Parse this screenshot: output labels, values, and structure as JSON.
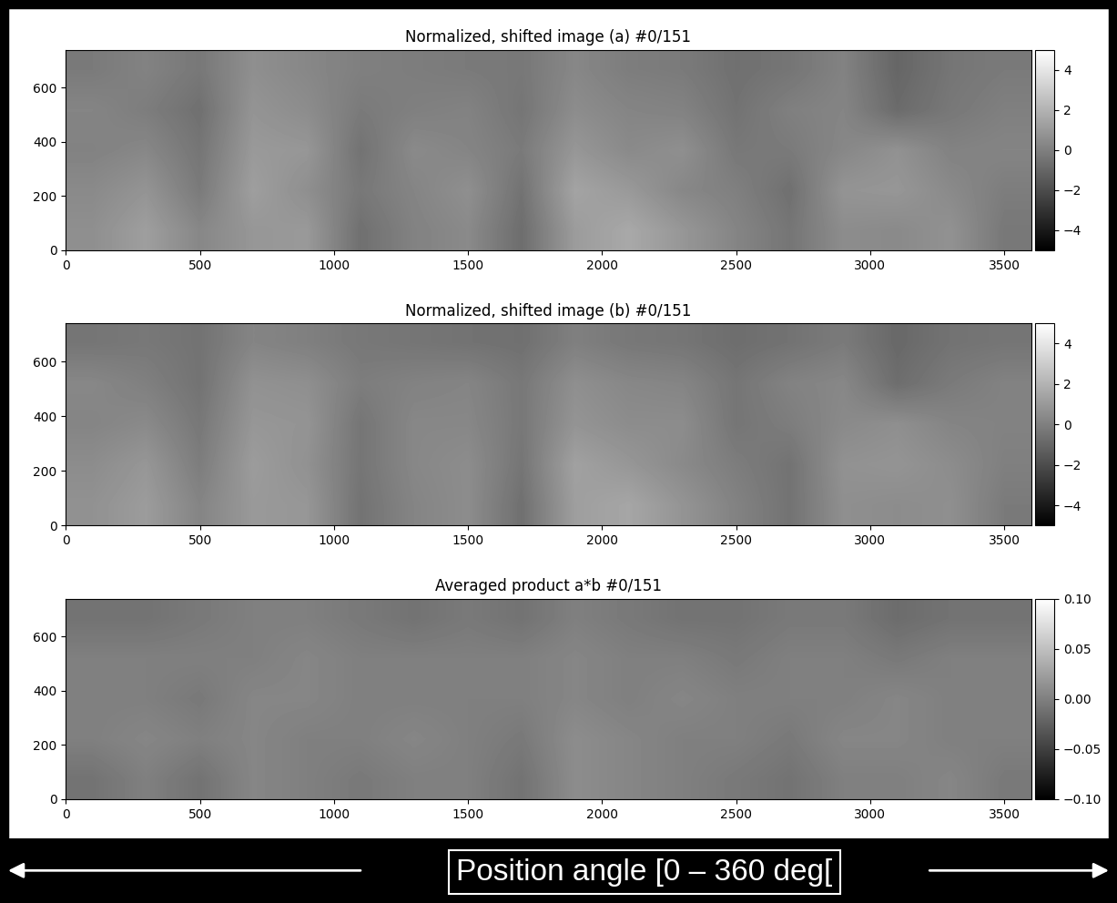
{
  "chart_data": [
    {
      "type": "heatmap",
      "title": "Normalized, shifted image (a) #0/151",
      "xlim": [
        0,
        3600
      ],
      "ylim": [
        0,
        740
      ],
      "xticks": [
        0,
        500,
        1000,
        1500,
        2000,
        2500,
        3000,
        3500
      ],
      "yticks": [
        0,
        200,
        400,
        600
      ],
      "cells": [
        [
          0.6,
          1.2,
          0.3,
          0.9,
          1.0,
          -0.6,
          0.1,
          0.4,
          -0.7,
          1.1,
          1.6,
          0.9,
          0.2,
          -0.4,
          0.5,
          0.4,
          0.7,
          -0.3
        ],
        [
          0.4,
          0.8,
          -0.2,
          1.2,
          0.6,
          -0.3,
          0.2,
          0.6,
          -0.5,
          1.4,
          1.0,
          0.3,
          0.0,
          -0.6,
          0.8,
          0.9,
          0.4,
          -0.1
        ],
        [
          0.1,
          0.3,
          -0.4,
          1.0,
          0.9,
          -0.5,
          0.4,
          0.2,
          -0.2,
          0.9,
          0.4,
          0.6,
          -0.3,
          -0.2,
          0.3,
          0.7,
          0.1,
          0.2
        ],
        [
          0.2,
          -0.1,
          -0.6,
          0.8,
          0.5,
          -0.2,
          0.0,
          0.1,
          -0.4,
          0.5,
          0.2,
          0.1,
          -0.5,
          0.0,
          0.2,
          -0.8,
          -0.3,
          0.0
        ],
        [
          -0.2,
          0.1,
          -0.3,
          0.6,
          0.3,
          0.0,
          -0.1,
          -0.2,
          -0.3,
          0.3,
          -0.1,
          -0.2,
          -0.6,
          -0.4,
          0.1,
          -1.0,
          -0.4,
          -0.2
        ]
      ],
      "colorbar": {
        "range": [
          -5,
          5
        ],
        "ticks": [
          {
            "value": -4,
            "label": "−4"
          },
          {
            "value": -2,
            "label": "−2"
          },
          0,
          2,
          4
        ]
      }
    },
    {
      "type": "heatmap",
      "title": "Normalized, shifted image (b) #0/151",
      "xlim": [
        0,
        3600
      ],
      "ylim": [
        0,
        740
      ],
      "xticks": [
        0,
        500,
        1000,
        1500,
        2000,
        2500,
        3000,
        3500
      ],
      "yticks": [
        0,
        200,
        400,
        600
      ],
      "cells": [
        [
          0.7,
          1.1,
          0.2,
          1.0,
          0.9,
          -0.5,
          0.2,
          0.5,
          -0.6,
          1.2,
          1.5,
          0.8,
          0.1,
          -0.5,
          0.6,
          0.5,
          0.6,
          -0.2
        ],
        [
          0.5,
          0.9,
          -0.1,
          1.1,
          0.7,
          -0.4,
          0.3,
          0.5,
          -0.4,
          1.3,
          0.9,
          0.4,
          -0.1,
          -0.5,
          0.7,
          0.8,
          0.5,
          0.0
        ],
        [
          0.2,
          0.4,
          -0.3,
          0.9,
          0.8,
          -0.4,
          0.3,
          0.3,
          -0.3,
          0.8,
          0.5,
          0.5,
          -0.4,
          -0.1,
          0.4,
          0.6,
          0.2,
          0.1
        ],
        [
          0.3,
          0.0,
          -0.5,
          0.7,
          0.6,
          -0.1,
          0.1,
          0.2,
          -0.3,
          0.6,
          0.3,
          0.2,
          -0.4,
          0.1,
          0.3,
          -0.7,
          -0.2,
          0.1
        ],
        [
          -0.4,
          -0.3,
          -0.5,
          0.2,
          0.0,
          -0.3,
          -0.4,
          -0.5,
          -0.6,
          0.0,
          -0.3,
          -0.4,
          -0.7,
          -0.5,
          -0.2,
          -0.9,
          -0.5,
          -0.4
        ]
      ],
      "colorbar": {
        "range": [
          -5,
          5
        ],
        "ticks": [
          {
            "value": -4,
            "label": "−4"
          },
          {
            "value": -2,
            "label": "−2"
          },
          0,
          2,
          4
        ]
      }
    },
    {
      "type": "heatmap",
      "title": "Averaged product a*b #0/151",
      "xlim": [
        0,
        3600
      ],
      "ylim": [
        0,
        740
      ],
      "xticks": [
        0,
        500,
        1000,
        1500,
        2000,
        2500,
        3000,
        3500
      ],
      "yticks": [
        0,
        200,
        400,
        600
      ],
      "cells": [
        [
          -0.01,
          0.0,
          -0.01,
          0.005,
          0.0,
          -0.005,
          0.0,
          0.0,
          -0.01,
          0.01,
          0.005,
          0.0,
          -0.005,
          -0.01,
          0.0,
          0.0,
          0.005,
          -0.005
        ],
        [
          0.0,
          0.005,
          0.0,
          0.005,
          0.0,
          0.0,
          0.005,
          0.0,
          -0.005,
          0.01,
          0.005,
          0.0,
          0.0,
          -0.005,
          0.005,
          0.005,
          0.0,
          0.0
        ],
        [
          0.0,
          0.0,
          -0.005,
          0.005,
          0.005,
          0.0,
          0.0,
          0.0,
          0.0,
          0.005,
          0.0,
          0.005,
          0.0,
          0.0,
          0.0,
          0.005,
          0.0,
          0.0
        ],
        [
          0.0,
          0.0,
          0.0,
          0.0,
          0.005,
          0.0,
          0.0,
          0.0,
          0.0,
          0.005,
          0.0,
          0.0,
          -0.005,
          0.0,
          0.0,
          -0.005,
          0.0,
          0.0
        ],
        [
          -0.01,
          -0.01,
          -0.005,
          0.0,
          0.0,
          -0.005,
          -0.01,
          -0.005,
          -0.01,
          0.0,
          -0.005,
          -0.01,
          -0.01,
          -0.005,
          -0.005,
          -0.015,
          -0.01,
          -0.01
        ]
      ],
      "colorbar": {
        "range": [
          -0.1,
          0.1
        ],
        "ticks": [
          {
            "value": -0.1,
            "label": "−0.10"
          },
          {
            "value": -0.05,
            "label": "−0.05"
          },
          {
            "value": 0.0,
            "label": "0.00"
          },
          {
            "value": 0.05,
            "label": "0.05"
          },
          {
            "value": 0.1,
            "label": "0.10"
          }
        ]
      }
    }
  ],
  "annotation": "Position angle [0 – 360 deg["
}
